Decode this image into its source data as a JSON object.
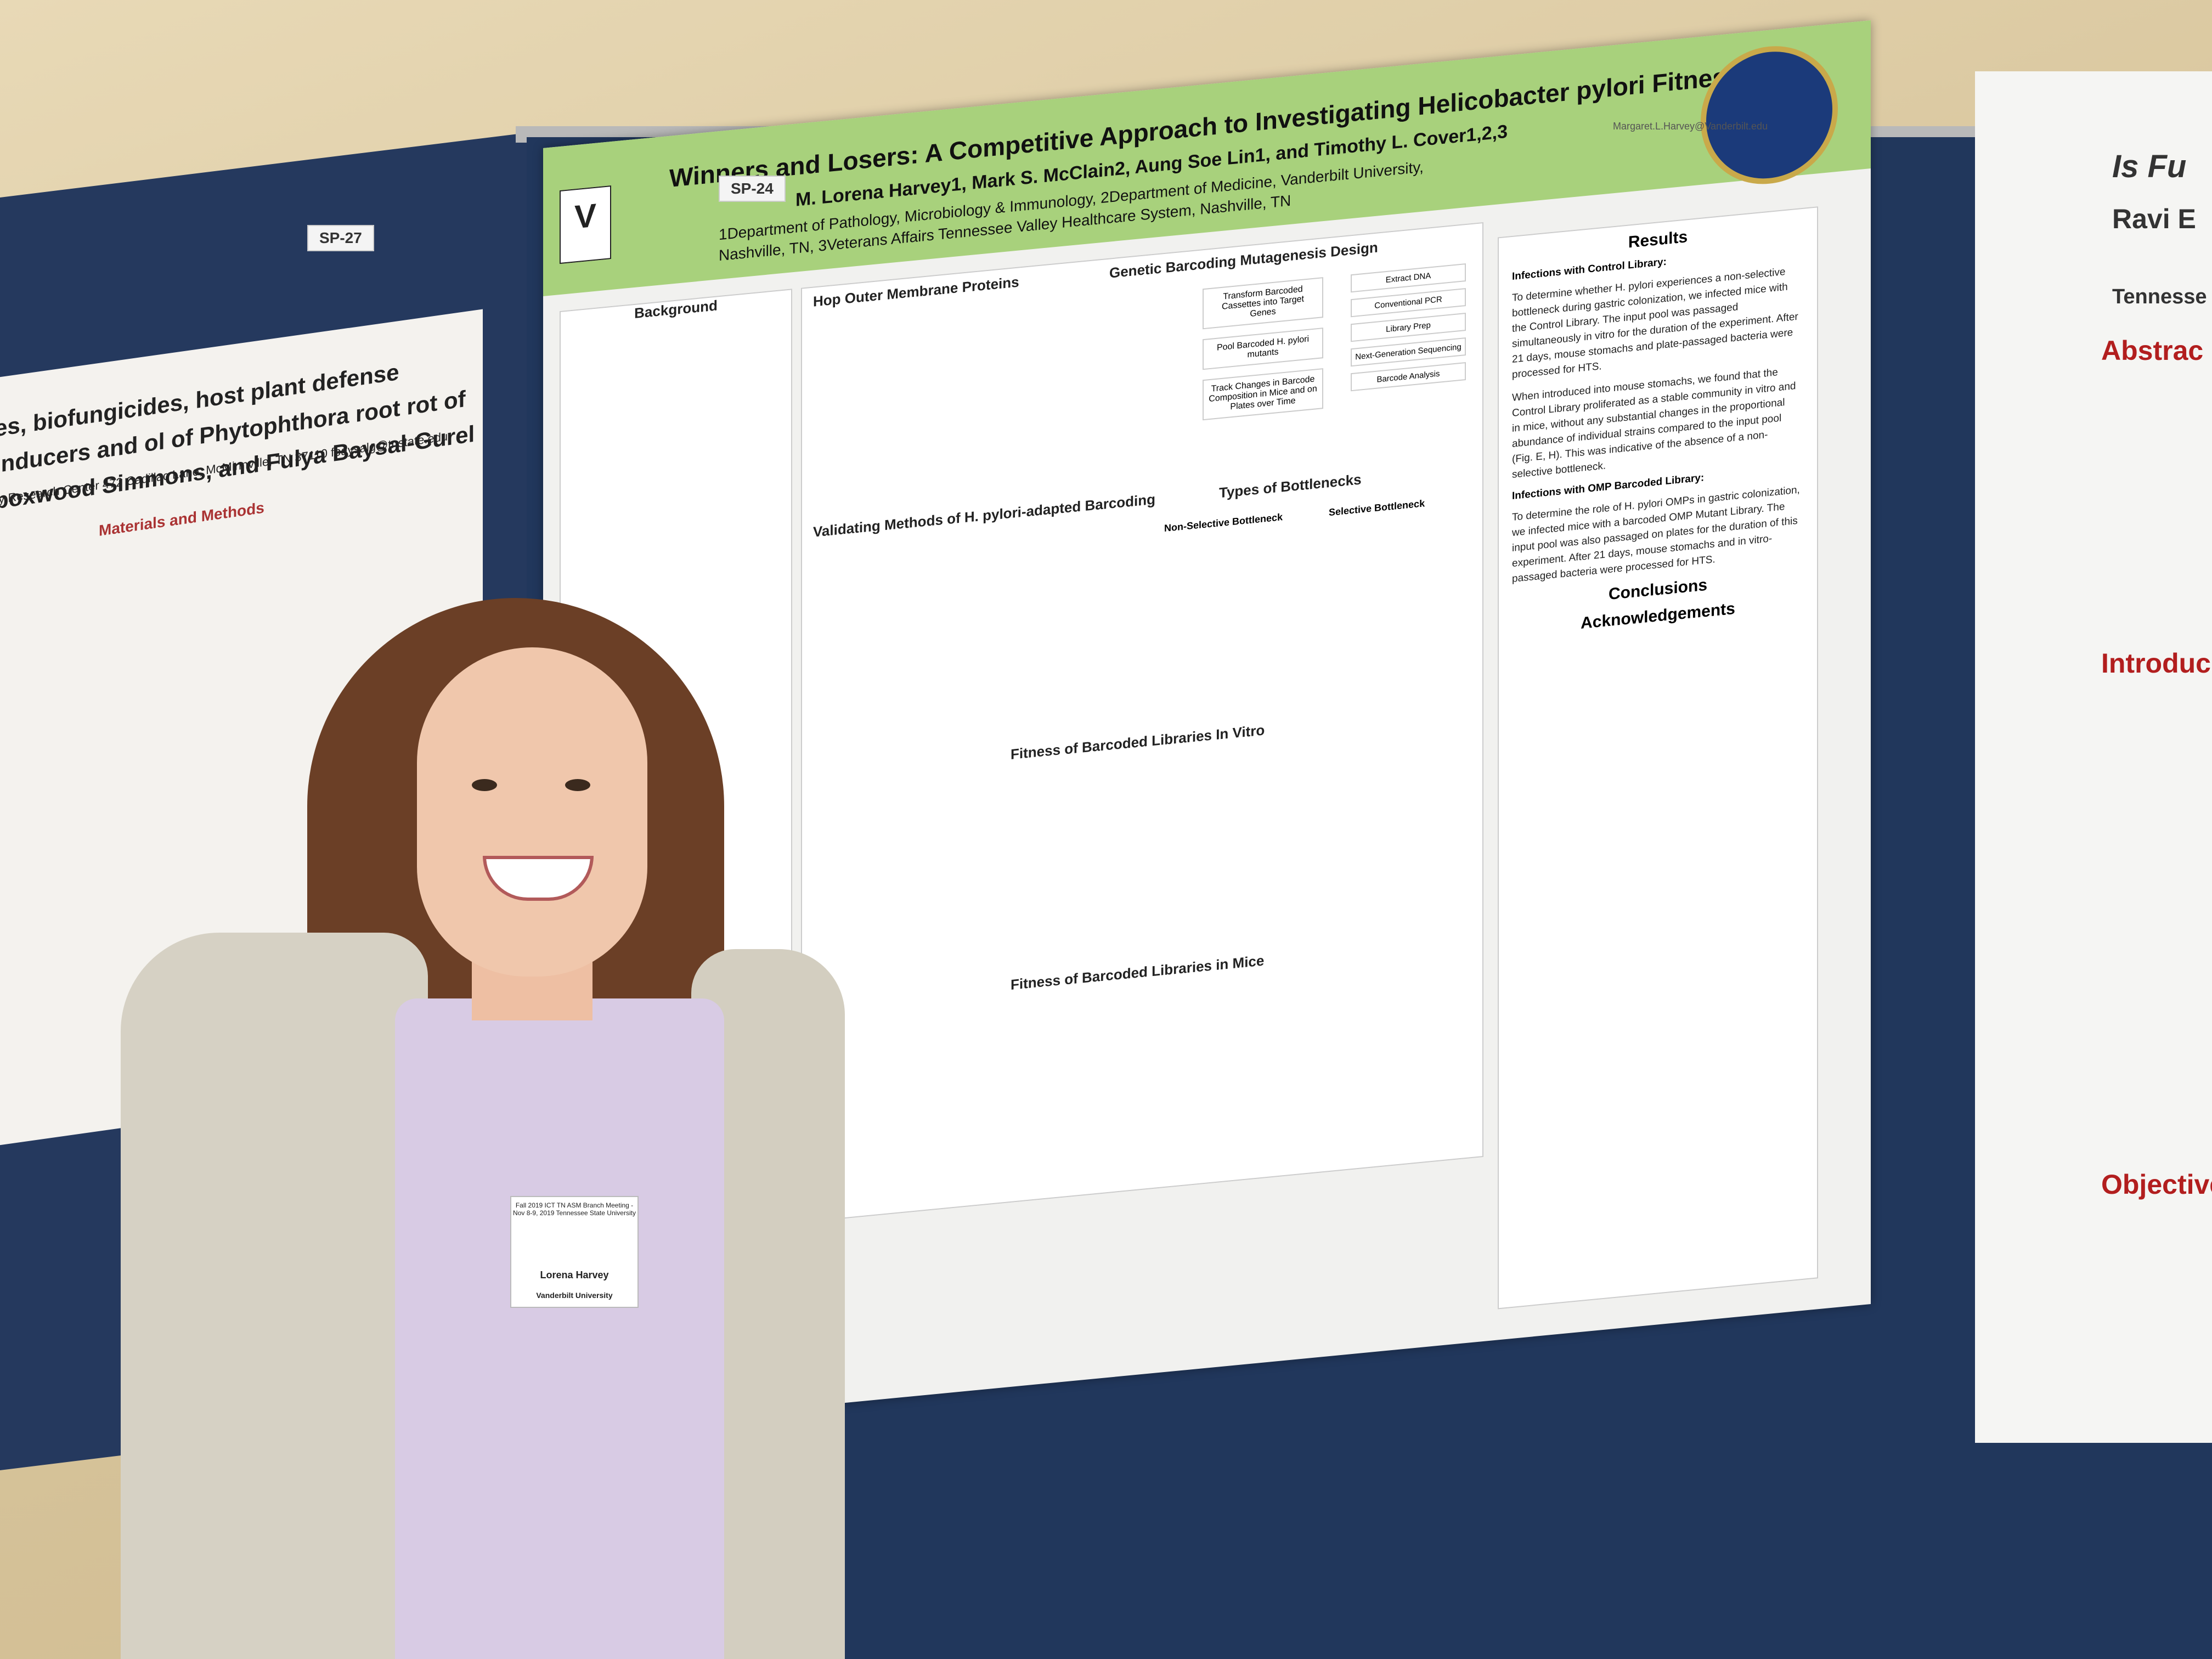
{
  "scene": {
    "left_tag": "SP-27",
    "main_tag": "SP-24",
    "email": "Margaret.L.Harvey@Vanderbilt.edu"
  },
  "main_poster": {
    "title": "Winners and Losers: A Competitive Approach to Investigating Helicobacter pylori Fitness",
    "authors": "M. Lorena Harvey1, Mark S. McClain2, Aung Soe Lin1, and Timothy L. Cover1,2,3",
    "affiliation": "1Department of Pathology, Microbiology & Immunology, 2Department of Medicine, Vanderbilt University, Nashville, TN, 3Veterans Affairs Tennessee Valley Healthcare System, Nashville, TN",
    "logo_text": "V",
    "sections": {
      "background": "Background",
      "hop": "Hop Outer Membrane Proteins",
      "genetic": "Genetic Barcoding Mutagenesis Design",
      "validating": "Validating Methods of H. pylori-adapted Barcoding",
      "bottlenecks": "Types of Bottlenecks",
      "non_selective": "Non-Selective Bottleneck",
      "selective": "Selective Bottleneck",
      "in_vitro": "Fitness of Barcoded Libraries In Vitro",
      "mice": "Fitness of Barcoded Libraries in Mice"
    },
    "flow": [
      "Transform Barcoded Cassettes into Target Genes",
      "Pool Barcoded H. pylori mutants",
      "Track Changes in Barcode Composition in Mice and on Plates over Time"
    ],
    "flow_right": [
      "Extract DNA",
      "Conventional PCR",
      "Library Prep",
      "Next-Generation Sequencing",
      "Barcode Analysis"
    ],
    "results": {
      "heading": "Results",
      "sub1": "Infections with Control Library:",
      "p1": "To determine whether H. pylori experiences a non-selective bottleneck during gastric colonization, we infected mice with the Control Library. The input pool was passaged simultaneously in vitro for the duration of the experiment. After 21 days, mouse stomachs and plate-passaged bacteria were processed for HTS.",
      "p2": "When introduced into mouse stomachs, we found that the Control Library proliferated as a stable community in vitro and in mice, without any substantial changes in the proportional abundance of individual strains compared to the input pool (Fig. E, H). This was indicative of the absence of a non-selective bottleneck.",
      "sub2": "Infections with OMP Barcoded Library:",
      "p3": "To determine the role of H. pylori OMPs in gastric colonization, we infected mice with a barcoded OMP Mutant Library. The input pool was also passaged on plates for the duration of this experiment. After 21 days, mouse stomachs and in vitro-passaged bacteria were processed for HTS.",
      "conclusions": "Conclusions",
      "acknowledgements": "Acknowledgements"
    }
  },
  "left_poster": {
    "title": "es, biofungicides, host plant defense inducers and ol of Phytophthora root rot of boxwood Simmons, and Fulya Baysal-Gurel",
    "address": "ry Research Center 472 Cadillac Lane, McMinnville, TN 37110 fbaysalg@tnstate.edu",
    "materials": "Materials and Methods"
  },
  "right_poster": {
    "title": "Is Fu",
    "subtitle": "Ravi E",
    "affiliation": "Tennesse",
    "abstract": "Abstrac",
    "intro": "Introduc",
    "objective": "Objective"
  },
  "badge": {
    "header": "Fall 2019 ICT TN ASM Branch Meeting - Nov 8-9, 2019 Tennessee State University",
    "name": "Lorena Harvey",
    "org": "Vanderbilt University"
  },
  "colors": {
    "board": "#21375c",
    "poster_header": "#a8d17c",
    "accent_red": "#b21e1e"
  }
}
